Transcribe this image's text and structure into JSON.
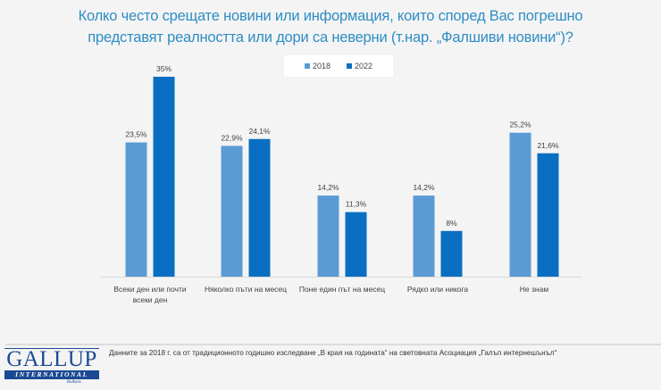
{
  "chart_data": {
    "type": "bar",
    "title": "Колко често срещате новини или информация, които според Вас погрешно представят реалността или дори са неверни (т.нар. „Фалшиви новини“)?",
    "title_lines": [
      "Колко често срещате новини или информация, които според Вас погрешно",
      "представят реалността или дори са неверни (т.нар. „Фалшиви новини“)?"
    ],
    "categories": [
      [
        "Всеки ден или почти",
        "всеки ден"
      ],
      [
        "Няколко пъти на месец"
      ],
      [
        "Поне един път на месец"
      ],
      [
        "Рядко или никога"
      ],
      [
        "Не знам"
      ]
    ],
    "series": [
      {
        "name": "2018",
        "color": "#5b9bd5",
        "values": [
          23.5,
          22.9,
          14.2,
          14.2,
          25.2
        ],
        "labels": [
          "23,5%",
          "22,9%",
          "14,2%",
          "14,2%",
          "25,2%"
        ]
      },
      {
        "name": "2022",
        "color": "#0a6fc2",
        "values": [
          35,
          24.1,
          11.3,
          8,
          21.6
        ],
        "labels": [
          "35%",
          "24,1%",
          "11,3%",
          "8%",
          "21,6%"
        ]
      }
    ],
    "xlabel": "",
    "ylabel": "",
    "ylim": [
      0,
      35
    ],
    "grid": false,
    "legend": "top-center"
  },
  "footer": {
    "note": "Данните за 2018 г. са от традиционното годишно изследване „В края на годината“ на световната Асоциация „Галъп интернешънъл“",
    "logo": {
      "main": "GALLUP",
      "band": "INTERNATIONAL",
      "sub": "Balkans"
    }
  },
  "colors": {
    "title": "#2e8dc4",
    "background": "#f4f4f4"
  }
}
